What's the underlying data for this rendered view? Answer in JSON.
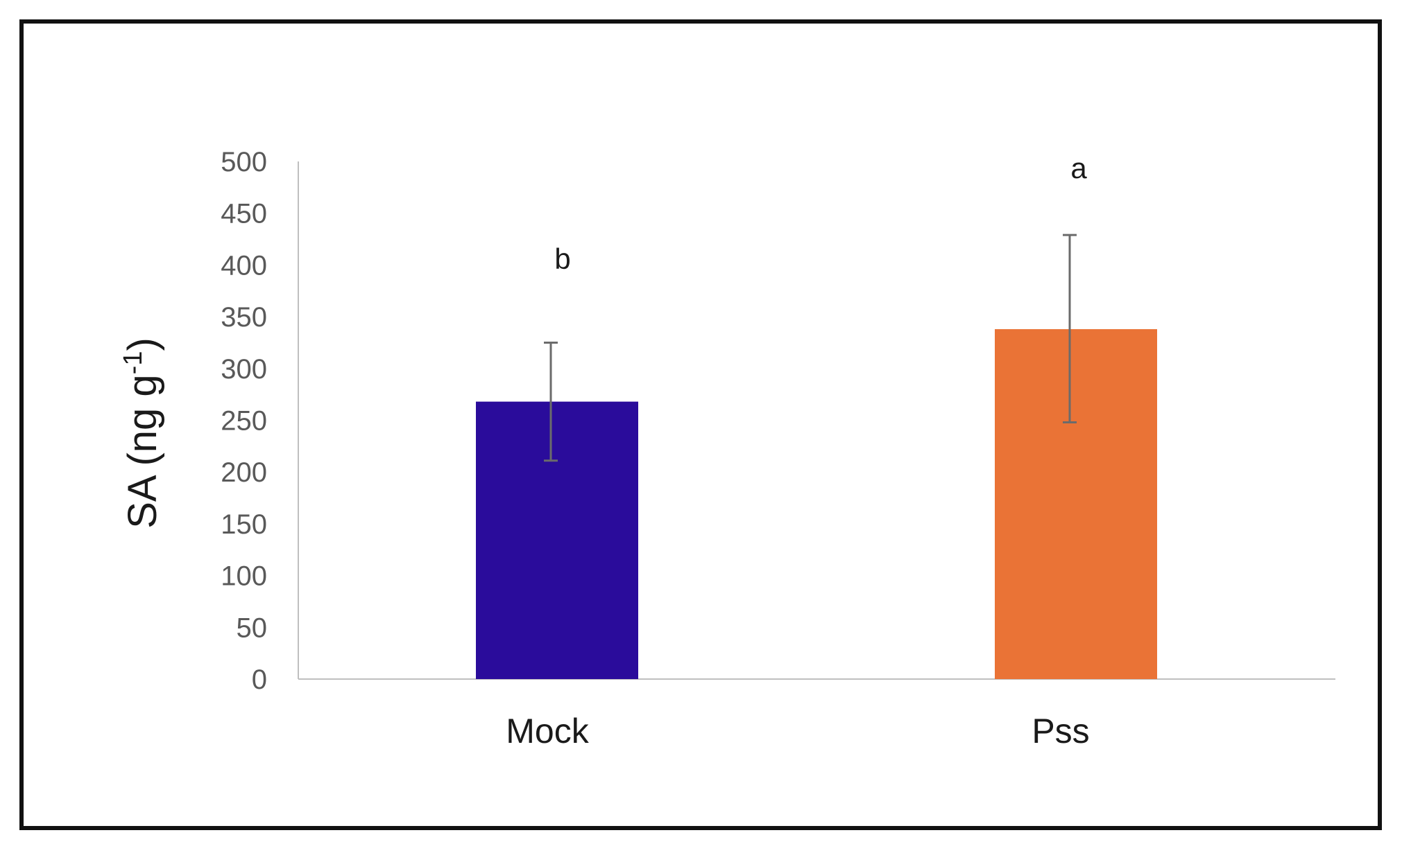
{
  "chart_data": {
    "type": "bar",
    "categories": [
      "Mock",
      "Pss"
    ],
    "values": [
      268,
      338
    ],
    "error_high": [
      325,
      429
    ],
    "error_low": [
      211,
      248
    ],
    "significance": [
      "b",
      "a"
    ],
    "colors": [
      "#2a0c9b",
      "#ea7336"
    ],
    "ylabel": {
      "main": "SA (ng g",
      "superscript": "-1",
      "close": ")"
    },
    "ylim": [
      0,
      500
    ],
    "yticks": [
      "0",
      "50",
      "100",
      "150",
      "200",
      "250",
      "300",
      "350",
      "400",
      "450",
      "500"
    ],
    "grid": false
  }
}
